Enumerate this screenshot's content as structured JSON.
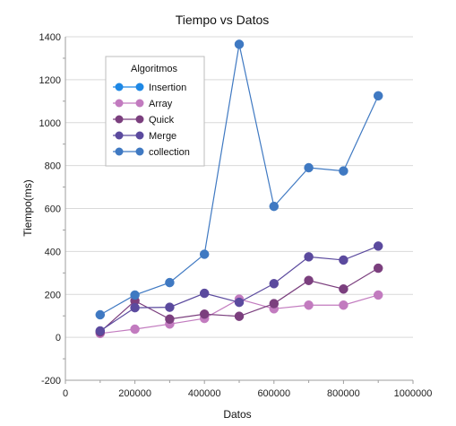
{
  "chart_data": {
    "type": "line",
    "title": "Tiempo vs Datos",
    "xlabel": "Datos",
    "ylabel": "Tiempo(ms)",
    "xlim": [
      0,
      1000000
    ],
    "ylim": [
      -200,
      1400
    ],
    "x_ticks": [
      0,
      200000,
      400000,
      600000,
      800000,
      1000000
    ],
    "x_tick_labels": [
      "0",
      "200000",
      "400000",
      "600000",
      "800000",
      "1000000"
    ],
    "y_ticks": [
      -200,
      0,
      200,
      400,
      600,
      800,
      1000,
      1200,
      1400
    ],
    "y_tick_labels": [
      "-200",
      "0",
      "200",
      "400",
      "600",
      "800",
      "1000",
      "1200",
      "1400"
    ],
    "grid": "horizontal",
    "legend": {
      "title": "Algoritmos",
      "placement": "top-left"
    },
    "x": [
      100000,
      200000,
      300000,
      400000,
      500000,
      600000,
      700000,
      800000,
      900000
    ],
    "series": [
      {
        "name": "Insertion",
        "color": "#1e88e5",
        "values": [
          null,
          null,
          null,
          null,
          null,
          null,
          null,
          null,
          null
        ]
      },
      {
        "name": "Array",
        "color": "#c27bbf",
        "values": [
          18,
          38,
          62,
          88,
          178,
          133,
          150,
          150,
          197
        ]
      },
      {
        "name": "Quick",
        "color": "#7b3f7e",
        "values": [
          25,
          170,
          85,
          108,
          98,
          157,
          265,
          225,
          322
        ]
      },
      {
        "name": "Merge",
        "color": "#5b4a9e",
        "values": [
          30,
          138,
          140,
          205,
          163,
          250,
          375,
          360,
          425
        ]
      },
      {
        "name": "collection",
        "color": "#3f79c2",
        "values": [
          105,
          197,
          255,
          387,
          1365,
          610,
          790,
          775,
          1125
        ]
      }
    ]
  }
}
